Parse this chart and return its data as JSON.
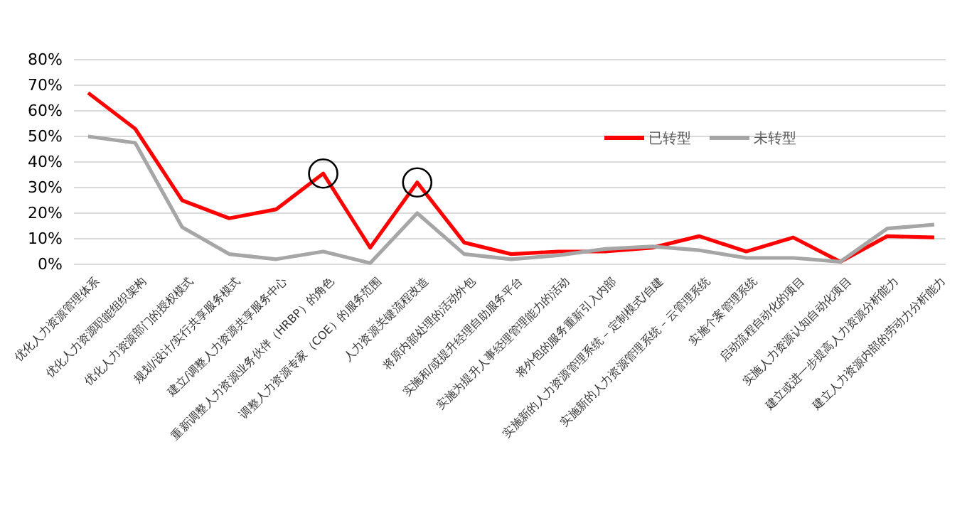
{
  "chart_data": {
    "type": "line",
    "categories": [
      "优化人力资源管理体系",
      "优化人力资源职能组织架构",
      "优化人力资源部门的授权模式",
      "规划/设计/实行共享服务模式",
      "建立/调整人力资源共享服务中心",
      "重新调整人力资源业务伙伴（HRBP）的角色",
      "调整人力资源专家（COE）的服务范围",
      "人力资源关键流程改造",
      "将原内部处理的活动外包",
      "实施和/或提升经理自助服务平台",
      "实施为提升人事经理管理能力的活动",
      "将外包的服务重新引入内部",
      "实施新的人力资源管理系统 – 定制模式/自建",
      "实施新的人力资源管理系统 – 云管理系统",
      "实施个案管理系统",
      "启动流程自动化的项目",
      "实施人力资源认知自动化项目",
      "建立或进一步提高人力资源分析能力",
      "建立人力资源内部的劳动力分析能力"
    ],
    "series": [
      {
        "name": "已转型",
        "color": "#ff0000",
        "values": [
          67,
          53,
          25,
          18,
          21.5,
          35.5,
          6.5,
          32,
          8.5,
          4,
          5,
          5,
          6.5,
          11,
          5,
          10.5,
          1,
          11,
          10.5
        ]
      },
      {
        "name": "未转型",
        "color": "#a6a6a6",
        "values": [
          50,
          47.5,
          14.5,
          4,
          2,
          5,
          0.5,
          20,
          4,
          2,
          3.5,
          6,
          7,
          5.5,
          2.5,
          2.5,
          1,
          14,
          15.5
        ]
      },
      {
        "type": "scatter",
        "color": "#000000",
        "marker": "circle",
        "x": [
          "重新调整人力资源业务伙伴（HRBP）的角色",
          "人力资源关键流程改造"
        ],
        "values": [
          35.5,
          32
        ]
      }
    ],
    "ylim": [
      0,
      80
    ],
    "yticks": [
      {
        "value": 0,
        "label": "0%"
      },
      {
        "value": 10,
        "label": "10%"
      },
      {
        "value": 20,
        "label": "20%"
      },
      {
        "value": 30,
        "label": "30%"
      },
      {
        "value": 40,
        "label": "40%"
      },
      {
        "value": 50,
        "label": "50%"
      },
      {
        "value": 60,
        "label": "60%"
      },
      {
        "value": 70,
        "label": "70%"
      },
      {
        "value": 80,
        "label": "80%"
      }
    ],
    "grid": "y",
    "legend": "right",
    "marker": "none",
    "line_style": "solid"
  }
}
